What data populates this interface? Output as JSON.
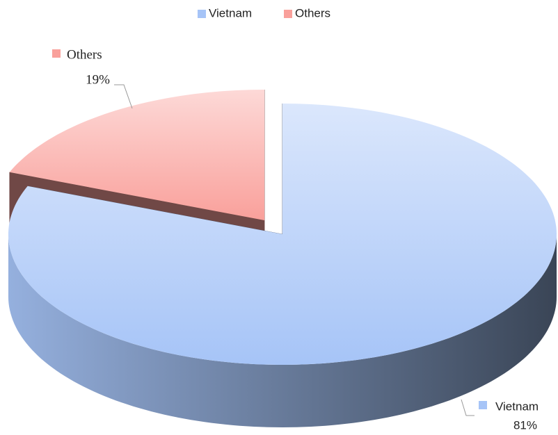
{
  "chart_data": {
    "type": "pie3d",
    "categories": [
      "Vietnam",
      "Others"
    ],
    "values": [
      81,
      19
    ],
    "value_labels": [
      "81%",
      "19%"
    ],
    "colors": [
      "#a6c4f7",
      "#f9a09b"
    ],
    "legend": "top"
  }
}
